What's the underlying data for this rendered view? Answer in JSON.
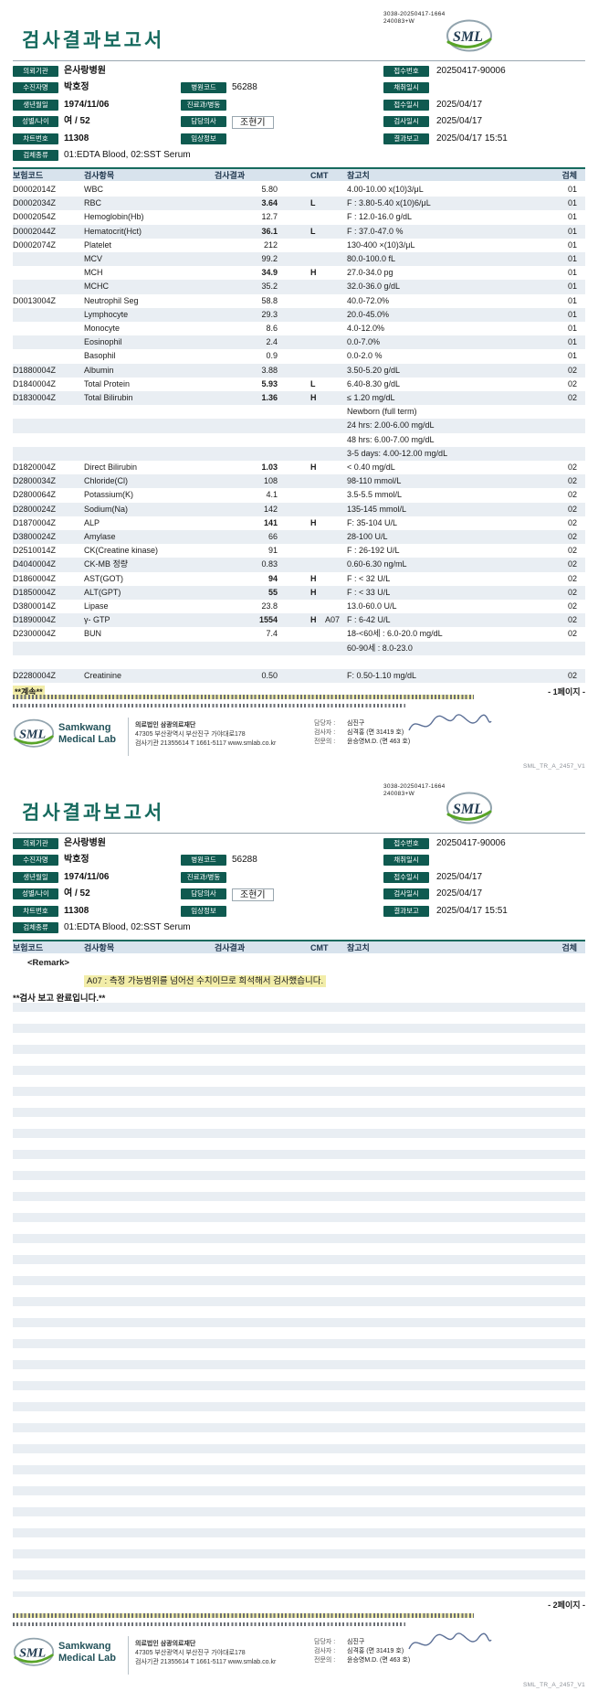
{
  "report": {
    "code_line1": "3038-20250417-1664",
    "code_line2": "240083+W",
    "title": "검사결과보고서",
    "logo_text": "SML"
  },
  "patient": {
    "items": [
      {
        "label": "의뢰기관",
        "value": "은사랑병원",
        "col": 0,
        "row": 0,
        "bold": true
      },
      {
        "label": "접수번호",
        "value": "20250417-90006",
        "col": 2,
        "row": 0
      },
      {
        "label": "수진자명",
        "value": "박호정",
        "col": 0,
        "row": 1,
        "bold": true
      },
      {
        "label": "병원코드",
        "value": "56288",
        "col": 1,
        "row": 1
      },
      {
        "label": "채취일시",
        "value": "",
        "col": 2,
        "row": 1
      },
      {
        "label": "생년월일",
        "value": "1974/11/06",
        "col": 0,
        "row": 2,
        "bold": true
      },
      {
        "label": "진료과/병동",
        "value": "",
        "col": 1,
        "row": 2
      },
      {
        "label": "접수일시",
        "value": "2025/04/17",
        "col": 2,
        "row": 2
      },
      {
        "label": "성별/나이",
        "value": "여 / 52",
        "col": 0,
        "row": 3,
        "bold": true
      },
      {
        "label": "담당의사",
        "value": "조현기",
        "col": 1,
        "row": 3,
        "boxed": true
      },
      {
        "label": "검사일시",
        "value": "2025/04/17",
        "col": 2,
        "row": 3
      },
      {
        "label": "차트번호",
        "value": "11308",
        "col": 0,
        "row": 4,
        "bold": true
      },
      {
        "label": "임상정보",
        "value": "",
        "col": 1,
        "row": 4
      },
      {
        "label": "결과보고",
        "value": "2025/04/17 15:51",
        "col": 2,
        "row": 4
      },
      {
        "label": "검체종류",
        "value": "01:EDTA Blood, 02:SST Serum",
        "col": 0,
        "row": 5
      }
    ]
  },
  "table": {
    "headers": [
      "보험코드",
      "검사항목",
      "검사결과",
      "CMT",
      "참고치",
      "검체"
    ],
    "rows": [
      {
        "code": "D0002014Z",
        "name": "WBC",
        "result": "5.80",
        "flag": "",
        "note": "",
        "ref": "4.00-10.00 x(10)3/μL",
        "spec": "01"
      },
      {
        "code": "D0002034Z",
        "name": "RBC",
        "result": "3.64",
        "flag": "L",
        "note": "",
        "ref": "F : 3.80-5.40 x(10)6/μL",
        "spec": "01"
      },
      {
        "code": "D0002054Z",
        "name": "Hemoglobin(Hb)",
        "result": "12.7",
        "flag": "",
        "note": "",
        "ref": "F : 12.0-16.0 g/dL",
        "spec": "01"
      },
      {
        "code": "D0002044Z",
        "name": "Hematocrit(Hct)",
        "result": "36.1",
        "flag": "L",
        "note": "",
        "ref": "F : 37.0-47.0 %",
        "spec": "01"
      },
      {
        "code": "D0002074Z",
        "name": "Platelet",
        "result": "212",
        "flag": "",
        "note": "",
        "ref": "130-400 ×(10)3/μL",
        "spec": "01"
      },
      {
        "code": "",
        "name": "MCV",
        "result": "99.2",
        "flag": "",
        "note": "",
        "ref": "80.0-100.0 fL",
        "spec": "01"
      },
      {
        "code": "",
        "name": "MCH",
        "result": "34.9",
        "flag": "H",
        "note": "",
        "ref": "27.0-34.0 pg",
        "spec": "01"
      },
      {
        "code": "",
        "name": "MCHC",
        "result": "35.2",
        "flag": "",
        "note": "",
        "ref": "32.0-36.0 g/dL",
        "spec": "01"
      },
      {
        "code": "D0013004Z",
        "name": "Neutrophil Seg",
        "result": "58.8",
        "flag": "",
        "note": "",
        "ref": "40.0-72.0%",
        "spec": "01"
      },
      {
        "code": "",
        "name": "Lymphocyte",
        "result": "29.3",
        "flag": "",
        "note": "",
        "ref": "20.0-45.0%",
        "spec": "01"
      },
      {
        "code": "",
        "name": "Monocyte",
        "result": "8.6",
        "flag": "",
        "note": "",
        "ref": "4.0-12.0%",
        "spec": "01"
      },
      {
        "code": "",
        "name": "Eosinophil",
        "result": "2.4",
        "flag": "",
        "note": "",
        "ref": "0.0-7.0%",
        "spec": "01"
      },
      {
        "code": "",
        "name": "Basophil",
        "result": "0.9",
        "flag": "",
        "note": "",
        "ref": "0.0-2.0 %",
        "spec": "01"
      },
      {
        "code": "D1880004Z",
        "name": "Albumin",
        "result": "3.88",
        "flag": "",
        "note": "",
        "ref": "3.50-5.20 g/dL",
        "spec": "02"
      },
      {
        "code": "D1840004Z",
        "name": "Total Protein",
        "result": "5.93",
        "flag": "L",
        "note": "",
        "ref": "6.40-8.30 g/dL",
        "spec": "02"
      },
      {
        "code": "D1830004Z",
        "name": "Total Bilirubin",
        "result": "1.36",
        "flag": "H",
        "note": "",
        "ref": "≤ 1.20 mg/dL",
        "spec": "02"
      },
      {
        "code": "",
        "name": "",
        "result": "",
        "flag": "",
        "note": "",
        "ref": "Newborn (full term)",
        "spec": ""
      },
      {
        "code": "",
        "name": "",
        "result": "",
        "flag": "",
        "note": "",
        "ref": "24 hrs: 2.00-6.00 mg/dL",
        "spec": ""
      },
      {
        "code": "",
        "name": "",
        "result": "",
        "flag": "",
        "note": "",
        "ref": "48 hrs: 6.00-7.00 mg/dL",
        "spec": ""
      },
      {
        "code": "",
        "name": "",
        "result": "",
        "flag": "",
        "note": "",
        "ref": "3-5 days: 4.00-12.00 mg/dL",
        "spec": ""
      },
      {
        "code": "D1820004Z",
        "name": "Direct Bilirubin",
        "result": "1.03",
        "flag": "H",
        "note": "",
        "ref": "< 0.40 mg/dL",
        "spec": "02"
      },
      {
        "code": "D2800034Z",
        "name": "Chloride(Cl)",
        "result": "108",
        "flag": "",
        "note": "",
        "ref": "98-110 mmol/L",
        "spec": "02"
      },
      {
        "code": "D2800064Z",
        "name": "Potassium(K)",
        "result": "4.1",
        "flag": "",
        "note": "",
        "ref": "3.5-5.5 mmol/L",
        "spec": "02"
      },
      {
        "code": "D2800024Z",
        "name": "Sodium(Na)",
        "result": "142",
        "flag": "",
        "note": "",
        "ref": "135-145 mmol/L",
        "spec": "02"
      },
      {
        "code": "D1870004Z",
        "name": "ALP",
        "result": "141",
        "flag": "H",
        "note": "",
        "ref": "F: 35-104 U/L",
        "spec": "02"
      },
      {
        "code": "D3800024Z",
        "name": "Amylase",
        "result": "66",
        "flag": "",
        "note": "",
        "ref": "28-100 U/L",
        "spec": "02"
      },
      {
        "code": "D2510014Z",
        "name": "CK(Creatine kinase)",
        "result": "91",
        "flag": "",
        "note": "",
        "ref": "F : 26-192 U/L",
        "spec": "02"
      },
      {
        "code": "D4040004Z",
        "name": "CK-MB 정량",
        "result": "0.83",
        "flag": "",
        "note": "",
        "ref": "0.60-6.30 ng/mL",
        "spec": "02"
      },
      {
        "code": "D1860004Z",
        "name": "AST(GOT)",
        "result": "94",
        "flag": "H",
        "note": "",
        "ref": "F : < 32 U/L",
        "spec": "02"
      },
      {
        "code": "D1850004Z",
        "name": "ALT(GPT)",
        "result": "55",
        "flag": "H",
        "note": "",
        "ref": "F : < 33 U/L",
        "spec": "02"
      },
      {
        "code": "D3800014Z",
        "name": "Lipase",
        "result": "23.8",
        "flag": "",
        "note": "",
        "ref": "13.0-60.0 U/L",
        "spec": "02"
      },
      {
        "code": "D1890004Z",
        "name": "γ- GTP",
        "result": "1554",
        "flag": "H",
        "note": "A07",
        "ref": "F : 6-42 U/L",
        "spec": "02"
      },
      {
        "code": "D2300004Z",
        "name": "BUN",
        "result": "7.4",
        "flag": "",
        "note": "",
        "ref": "18-<60세 : 6.0-20.0 mg/dL",
        "spec": "02"
      },
      {
        "code": "",
        "name": "",
        "result": "",
        "flag": "",
        "note": "",
        "ref": "60-90세 : 8.0-23.0",
        "spec": ""
      },
      {
        "code": "",
        "name": "",
        "result": "",
        "flag": "",
        "note": "",
        "ref": "",
        "spec": ""
      },
      {
        "code": "D2280004Z",
        "name": "Creatinine",
        "result": "0.50",
        "flag": "",
        "note": "",
        "ref": "F: 0.50-1.10 mg/dL",
        "spec": "02"
      }
    ]
  },
  "page1": {
    "continued": "**계속**",
    "marker": "- 1페이지 -"
  },
  "page2": {
    "marker": "- 2페이지 -",
    "remark_title": "<Remark>",
    "remark_a07": "A07 : 측정 가능범위를 넘어선 수치이므로 희석해서 검사했습니다.",
    "complete": "**검사 보고 완료입니다.**"
  },
  "footer": {
    "brand_line1": "Samkwang",
    "brand_line2": "Medical Lab",
    "org": "의료법인 삼광의료재단",
    "address": "47305 부산광역시 부산진구 가야대로178",
    "contact": "검사기관 21355614 T 1661-5117 www.smlab.co.kr",
    "staff": [
      {
        "label": "담당자 :",
        "value": "심진구"
      },
      {
        "label": "검사자 :",
        "value": "심격홍 (면 31419 호)"
      },
      {
        "label": "전문의 :",
        "value": "윤승영M.D. (면 463 호)"
      }
    ],
    "version": "SML_TR_A_2457_V1"
  },
  "colors": {
    "accent_teal": "#166a5e",
    "label_badge": "#0f5a50",
    "table_header_bg": "#d8e3ed",
    "row_stripe": "#e9eef3",
    "low_blue": "#2a6bc0",
    "high_red": "#c63b35",
    "highlight_yellow": "#f2eda9",
    "brand_green": "#58a427"
  }
}
